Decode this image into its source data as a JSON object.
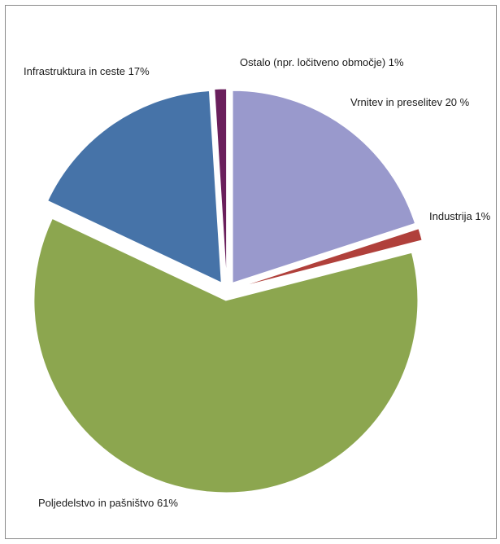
{
  "chart_data": {
    "type": "pie",
    "title": "",
    "legend": "none",
    "slices": [
      {
        "label": "Vrnitev in preselitev 20 %",
        "value": 20,
        "color": "#9999cc"
      },
      {
        "label": "Industrija 1%",
        "value": 1,
        "color": "#b0403b"
      },
      {
        "label": "Poljedelstvo in pašništvo 61%",
        "value": 61,
        "color": "#8ca64f"
      },
      {
        "label": "Infrastruktura in ceste 17%",
        "value": 17,
        "color": "#4673a8"
      },
      {
        "label": "Ostalo (npr. ločitveno območje) 1%",
        "value": 1,
        "color": "#6a1f5c"
      }
    ]
  }
}
